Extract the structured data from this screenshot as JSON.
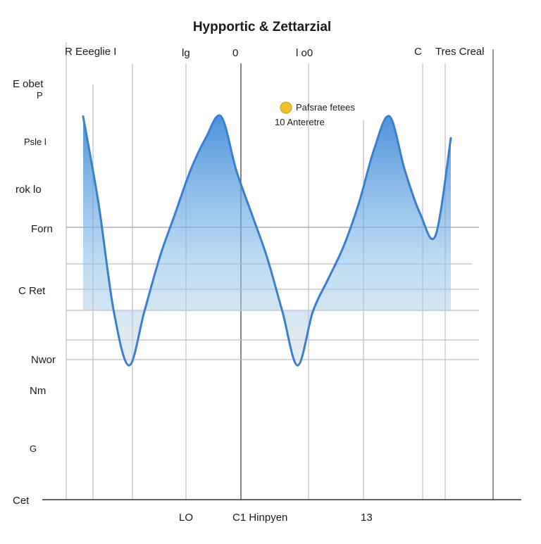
{
  "chart_data": {
    "type": "area",
    "title": "Hypportic & Zettarzial",
    "top_labels": [
      "R Eeeglie I",
      "lg",
      "0",
      "l o0",
      "C",
      "Tres Creal"
    ],
    "left_labels": [
      "E obet",
      "P",
      "Psle l",
      "rok lo",
      "Forn",
      "C Ret",
      "Nwor",
      "Nm",
      "G",
      "Cet"
    ],
    "bottom_labels": [
      "LO",
      "C1 Hinpyen",
      "13"
    ],
    "annotation": {
      "line1": "Pafsrae fetees",
      "line2": "10 Anteretre"
    },
    "x": [
      0,
      1,
      2,
      3,
      4,
      5,
      6,
      7,
      8,
      9,
      10,
      11,
      12,
      13,
      14,
      15,
      16,
      17,
      18,
      19,
      20,
      21,
      22,
      23,
      24
    ],
    "series": [
      {
        "values": [
          0.95,
          0.55,
          0.05,
          -0.2,
          0.05,
          0.3,
          0.5,
          0.7,
          0.85,
          0.95,
          0.7,
          0.5,
          0.3,
          0.05,
          -0.2,
          0.05,
          0.2,
          0.35,
          0.55,
          0.8,
          0.95,
          0.7,
          0.5,
          0.4,
          0.85
        ]
      }
    ],
    "xlim": [
      0,
      24
    ],
    "ylim": [
      -0.3,
      1.0
    ],
    "grid": true,
    "colors": {
      "line": "#3a7fd0",
      "fill": "#5aa2e0",
      "grid": "#b9bec4",
      "axis": "#333333"
    }
  }
}
